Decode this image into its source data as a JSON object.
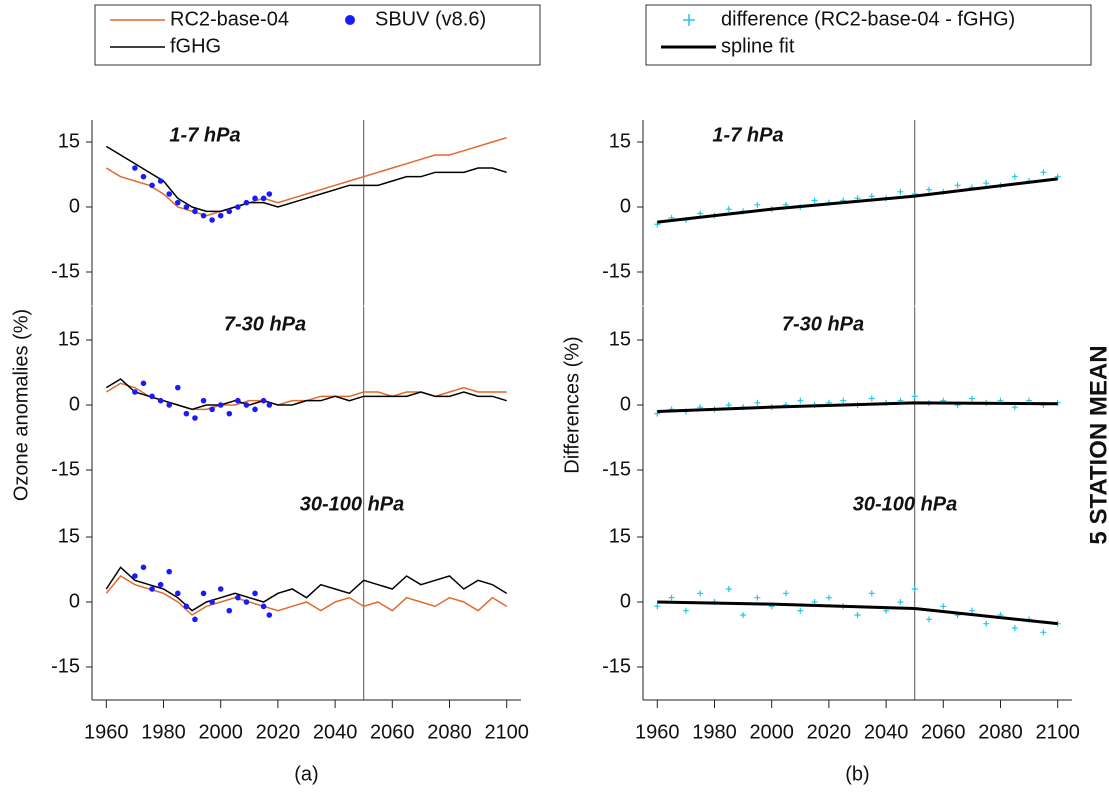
{
  "chart_data": [
    {
      "type": "line",
      "title": "1-7 hPa",
      "xlim": [
        1955,
        2105
      ],
      "ylim": [
        -20,
        20
      ],
      "yticks": [
        -15,
        0,
        15
      ],
      "vline": 2050,
      "legend": "top",
      "x": [
        1960,
        1965,
        1970,
        1975,
        1980,
        1985,
        1990,
        1995,
        2000,
        2005,
        2010,
        2015,
        2020,
        2025,
        2030,
        2035,
        2040,
        2045,
        2050,
        2055,
        2060,
        2065,
        2070,
        2075,
        2080,
        2085,
        2090,
        2095,
        2100
      ],
      "series": [
        {
          "name": "RC2-base-04",
          "type": "line",
          "color": "#e06a2c",
          "values": [
            9,
            7,
            6,
            5,
            3,
            0,
            -1,
            -2,
            -1,
            0,
            1,
            2,
            1,
            2,
            3,
            4,
            5,
            6,
            7,
            8,
            9,
            10,
            11,
            12,
            12,
            13,
            14,
            15,
            16
          ]
        },
        {
          "name": "fGHG",
          "type": "line",
          "color": "#000000",
          "values": [
            14,
            12,
            10,
            8,
            6,
            2,
            0,
            -1,
            -1,
            0,
            1,
            1,
            0,
            1,
            2,
            3,
            4,
            5,
            5,
            5,
            6,
            7,
            7,
            8,
            8,
            8,
            9,
            9,
            8
          ]
        },
        {
          "name": "SBUV (v8.6)",
          "type": "scatter",
          "color": "#1a1aff",
          "x": [
            1970,
            1973,
            1976,
            1979,
            1982,
            1985,
            1988,
            1991,
            1994,
            1997,
            2000,
            2003,
            2006,
            2009,
            2012,
            2015,
            2017
          ],
          "values": [
            9,
            7,
            5,
            6,
            3,
            1,
            0,
            -1,
            -2,
            -3,
            -2,
            -1,
            0,
            1,
            2,
            2,
            3
          ]
        }
      ]
    },
    {
      "type": "line",
      "title": "7-30 hPa",
      "ylabel": "Ozone anomalies (%)",
      "xlim": [
        1955,
        2105
      ],
      "ylim": [
        -20,
        20
      ],
      "yticks": [
        -15,
        0,
        15
      ],
      "vline": 2050,
      "x": [
        1960,
        1965,
        1970,
        1975,
        1980,
        1985,
        1990,
        1995,
        2000,
        2005,
        2010,
        2015,
        2020,
        2025,
        2030,
        2035,
        2040,
        2045,
        2050,
        2055,
        2060,
        2065,
        2070,
        2075,
        2080,
        2085,
        2090,
        2095,
        2100
      ],
      "series": [
        {
          "name": "RC2-base-04",
          "type": "line",
          "color": "#e06a2c",
          "values": [
            3,
            5,
            4,
            2,
            1,
            0,
            -1,
            -1,
            0,
            0,
            1,
            1,
            0,
            1,
            1,
            2,
            2,
            2,
            3,
            3,
            2,
            3,
            3,
            2,
            3,
            4,
            3,
            3,
            3
          ]
        },
        {
          "name": "fGHG",
          "type": "line",
          "color": "#000000",
          "values": [
            4,
            6,
            3,
            2,
            1,
            0,
            -1,
            0,
            0,
            1,
            0,
            1,
            0,
            0,
            1,
            1,
            2,
            1,
            2,
            2,
            2,
            2,
            3,
            2,
            2,
            3,
            2,
            2,
            1
          ]
        },
        {
          "name": "SBUV (v8.6)",
          "type": "scatter",
          "color": "#1a1aff",
          "x": [
            1970,
            1973,
            1976,
            1979,
            1982,
            1985,
            1988,
            1991,
            1994,
            1997,
            2000,
            2003,
            2006,
            2009,
            2012,
            2015,
            2017
          ],
          "values": [
            3,
            5,
            2,
            1,
            0,
            4,
            -2,
            -3,
            1,
            -1,
            0,
            -2,
            1,
            0,
            -1,
            1,
            0
          ]
        }
      ]
    },
    {
      "type": "line",
      "title": "30-100 hPa",
      "caption": "(a)",
      "xlim": [
        1955,
        2105
      ],
      "ylim": [
        -20,
        20
      ],
      "yticks": [
        -15,
        0,
        15
      ],
      "vline": 2050,
      "xticks": [
        1960,
        1980,
        2000,
        2020,
        2040,
        2060,
        2080,
        2100
      ],
      "x": [
        1960,
        1965,
        1970,
        1975,
        1980,
        1985,
        1990,
        1995,
        2000,
        2005,
        2010,
        2015,
        2020,
        2025,
        2030,
        2035,
        2040,
        2045,
        2050,
        2055,
        2060,
        2065,
        2070,
        2075,
        2080,
        2085,
        2090,
        2095,
        2100
      ],
      "series": [
        {
          "name": "RC2-base-04",
          "type": "line",
          "color": "#e06a2c",
          "values": [
            2,
            6,
            4,
            3,
            2,
            0,
            -3,
            -1,
            0,
            1,
            0,
            -1,
            -2,
            -1,
            0,
            -2,
            0,
            1,
            -1,
            0,
            -2,
            1,
            0,
            -1,
            1,
            0,
            -2,
            1,
            -1
          ]
        },
        {
          "name": "fGHG",
          "type": "line",
          "color": "#000000",
          "values": [
            3,
            8,
            5,
            4,
            3,
            1,
            -2,
            0,
            1,
            2,
            1,
            0,
            2,
            3,
            1,
            4,
            3,
            2,
            5,
            4,
            3,
            6,
            4,
            5,
            6,
            3,
            5,
            4,
            2
          ]
        },
        {
          "name": "SBUV (v8.6)",
          "type": "scatter",
          "color": "#1a1aff",
          "x": [
            1970,
            1973,
            1976,
            1979,
            1982,
            1985,
            1988,
            1991,
            1994,
            1997,
            2000,
            2003,
            2006,
            2009,
            2012,
            2015,
            2017
          ],
          "values": [
            6,
            8,
            3,
            4,
            7,
            2,
            -1,
            -4,
            2,
            0,
            3,
            -2,
            1,
            0,
            2,
            -1,
            -3
          ]
        }
      ]
    },
    {
      "type": "line",
      "title": "1-7 hPa",
      "xlim": [
        1955,
        2105
      ],
      "ylim": [
        -20,
        20
      ],
      "yticks": [
        -15,
        0,
        15
      ],
      "vline": 2050,
      "legend": "top",
      "x": [
        1960,
        1965,
        1970,
        1975,
        1980,
        1985,
        1990,
        1995,
        2000,
        2005,
        2010,
        2015,
        2020,
        2025,
        2030,
        2035,
        2040,
        2045,
        2050,
        2055,
        2060,
        2065,
        2070,
        2075,
        2080,
        2085,
        2090,
        2095,
        2100
      ],
      "series": [
        {
          "name": "difference (RC2-base-04 - fGHG)",
          "type": "plus",
          "color": "#22c8e6",
          "values": [
            -4,
            -2.5,
            -3,
            -1.5,
            -2,
            -0.5,
            -1,
            0.5,
            -0.5,
            0.5,
            0,
            1.5,
            1,
            1.5,
            2,
            2.5,
            2,
            3.5,
            3,
            4,
            3.5,
            5,
            4.5,
            5.5,
            5,
            7,
            6,
            8,
            7
          ]
        },
        {
          "name": "spline fit",
          "type": "line",
          "width": 3,
          "color": "#000000",
          "x": [
            1960,
            2000,
            2050,
            2100
          ],
          "values": [
            -3.5,
            -0.5,
            2.5,
            6.5
          ]
        }
      ]
    },
    {
      "type": "line",
      "title": "7-30 hPa",
      "ylabel": "Differences (%)",
      "xlim": [
        1955,
        2105
      ],
      "ylim": [
        -20,
        20
      ],
      "yticks": [
        -15,
        0,
        15
      ],
      "vline": 2050,
      "x": [
        1960,
        1965,
        1970,
        1975,
        1980,
        1985,
        1990,
        1995,
        2000,
        2005,
        2010,
        2015,
        2020,
        2025,
        2030,
        2035,
        2040,
        2045,
        2050,
        2055,
        2060,
        2065,
        2070,
        2075,
        2080,
        2085,
        2090,
        2095,
        2100
      ],
      "series": [
        {
          "name": "difference (RC2-base-04 - fGHG)",
          "type": "plus",
          "color": "#22c8e6",
          "values": [
            -2,
            -1,
            -1.5,
            -0.5,
            -1,
            0,
            -0.5,
            0.5,
            -0.5,
            0,
            1,
            0,
            0.5,
            1,
            0,
            1.5,
            0.5,
            1,
            2,
            0.5,
            1,
            0,
            1.5,
            0.5,
            1,
            -0.5,
            1,
            0,
            0.5
          ]
        },
        {
          "name": "spline fit",
          "type": "line",
          "width": 3,
          "color": "#000000",
          "x": [
            1960,
            2000,
            2050,
            2100
          ],
          "values": [
            -1.5,
            -0.5,
            0.5,
            0.3
          ]
        }
      ]
    },
    {
      "type": "line",
      "title": "30-100 hPa",
      "caption": "(b)",
      "xlim": [
        1955,
        2105
      ],
      "ylim": [
        -20,
        20
      ],
      "yticks": [
        -15,
        0,
        15
      ],
      "vline": 2050,
      "xticks": [
        1960,
        1980,
        2000,
        2020,
        2040,
        2060,
        2080,
        2100
      ],
      "x": [
        1960,
        1965,
        1970,
        1975,
        1980,
        1985,
        1990,
        1995,
        2000,
        2005,
        2010,
        2015,
        2020,
        2025,
        2030,
        2035,
        2040,
        2045,
        2050,
        2055,
        2060,
        2065,
        2070,
        2075,
        2080,
        2085,
        2090,
        2095,
        2100
      ],
      "series": [
        {
          "name": "difference (RC2-base-04 - fGHG)",
          "type": "plus",
          "color": "#22c8e6",
          "values": [
            -1,
            1,
            -2,
            2,
            0,
            3,
            -3,
            1,
            -1,
            2,
            -2,
            0,
            1,
            -1,
            -3,
            2,
            -2,
            0,
            3,
            -4,
            -1,
            -3,
            -2,
            -5,
            -3,
            -6,
            -4,
            -7,
            -5
          ]
        },
        {
          "name": "spline fit",
          "type": "line",
          "width": 3,
          "color": "#000000",
          "x": [
            1960,
            2000,
            2050,
            2100
          ],
          "values": [
            0,
            -0.5,
            -1.5,
            -5
          ]
        }
      ]
    }
  ],
  "side_label": "5 STATION MEAN"
}
